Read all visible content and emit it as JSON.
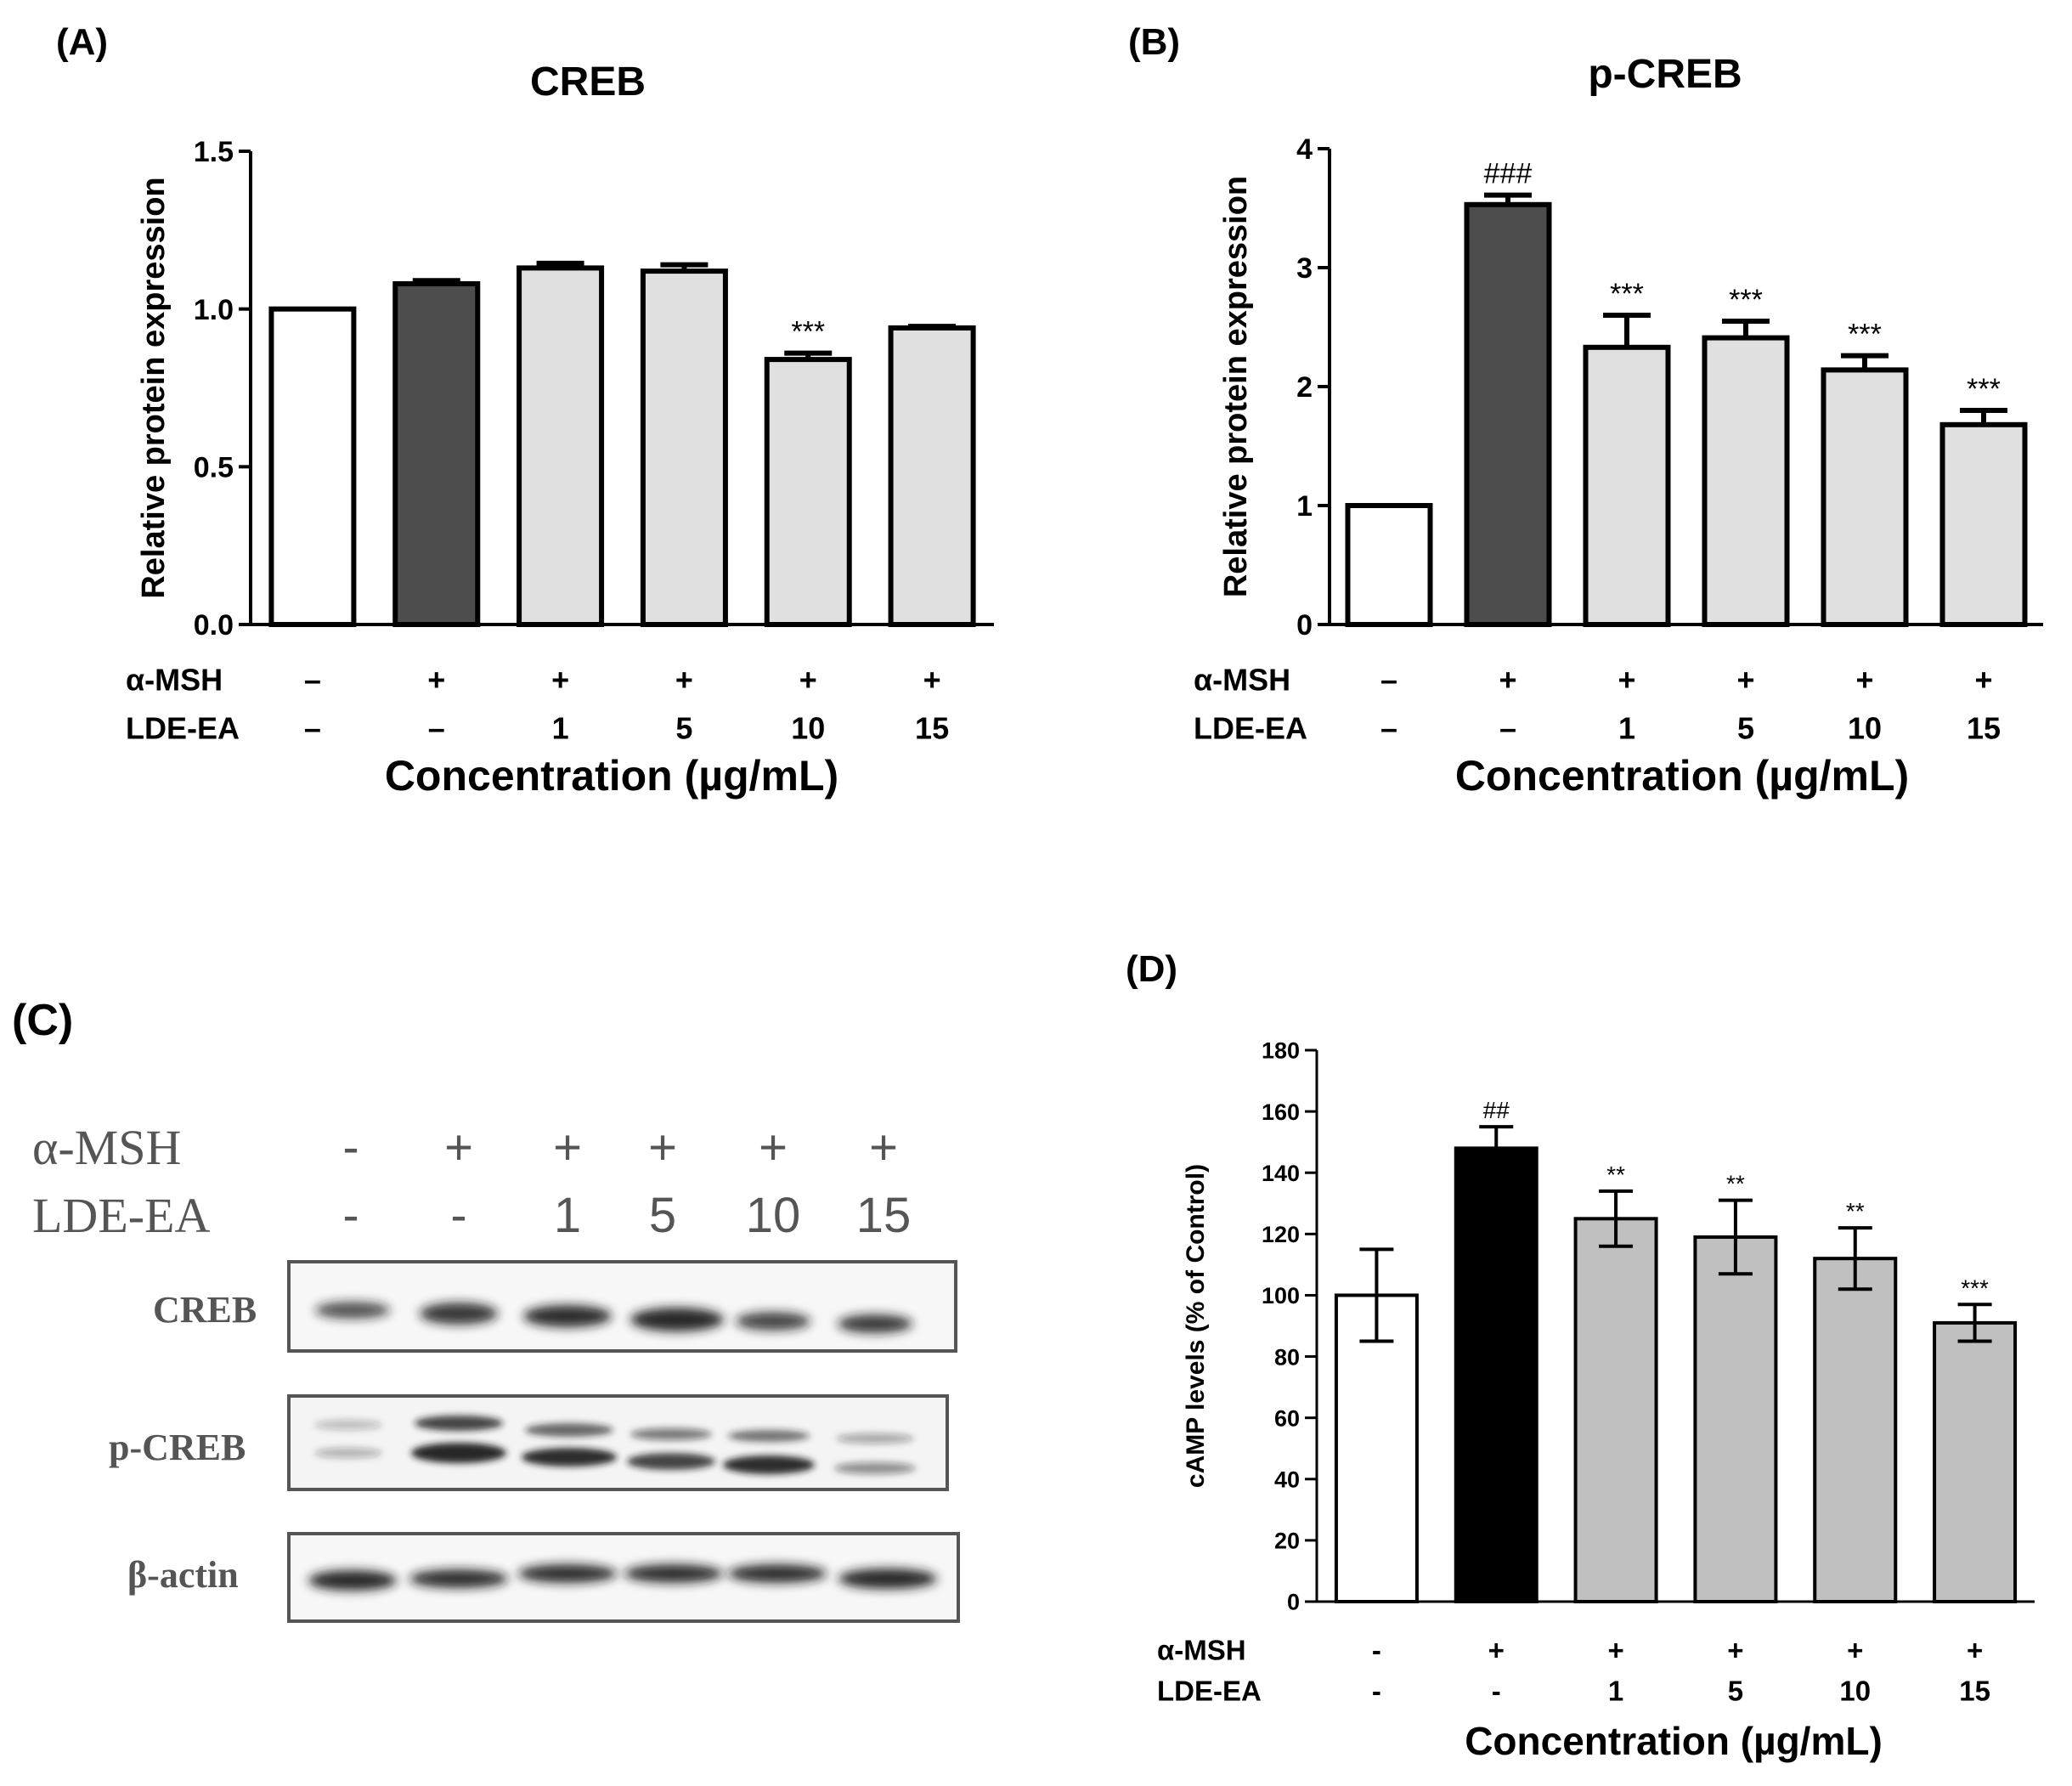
{
  "panel_labels": {
    "a": "(A)",
    "b": "(B)",
    "c": "(C)",
    "d": "(D)"
  },
  "chart_data": [
    {
      "panel": "(A)",
      "type": "bar",
      "title": "CREB",
      "ylabel": "Relative protein expression",
      "xlabel": "Concentration (µg/mL)",
      "ylim": [
        0,
        1.5
      ],
      "yticks": [
        "0.0",
        "0.5",
        "1.0",
        "1.5"
      ],
      "ytick_values": [
        0,
        0.5,
        1.0,
        1.5
      ],
      "row_labels": {
        "msh": "α-MSH",
        "lde": "LDE-EA"
      },
      "msh": [
        "–",
        "+",
        "+",
        "+",
        "+",
        "+"
      ],
      "lde": [
        "–",
        "–",
        "1",
        "5",
        "10",
        "15"
      ],
      "values": [
        1.0,
        1.08,
        1.13,
        1.12,
        0.84,
        0.94
      ],
      "errors": [
        0,
        0.01,
        0.015,
        0.02,
        0.02,
        0.005
      ],
      "annotations": [
        "",
        "",
        "",
        "",
        "***",
        ""
      ],
      "fills": [
        "#ffffff",
        "#4d4d4d",
        "#e0e0e0",
        "#e0e0e0",
        "#e0e0e0",
        "#e0e0e0"
      ]
    },
    {
      "panel": "(B)",
      "type": "bar",
      "title": "p-CREB",
      "ylabel": "Relative protein expression",
      "xlabel": "Concentration (µg/mL)",
      "ylim": [
        0,
        4
      ],
      "yticks": [
        "0",
        "1",
        "2",
        "3",
        "4"
      ],
      "ytick_values": [
        0,
        1,
        2,
        3,
        4
      ],
      "row_labels": {
        "msh": "α-MSH",
        "lde": "LDE-EA"
      },
      "msh": [
        "–",
        "+",
        "+",
        "+",
        "+",
        "+"
      ],
      "lde": [
        "–",
        "–",
        "1",
        "5",
        "10",
        "15"
      ],
      "values": [
        1.0,
        3.53,
        2.33,
        2.41,
        2.14,
        1.68
      ],
      "errors": [
        0,
        0.08,
        0.27,
        0.14,
        0.12,
        0.12
      ],
      "annotations": [
        "",
        "###",
        "***",
        "***",
        "***",
        "***"
      ],
      "fills": [
        "#ffffff",
        "#4d4d4d",
        "#e0e0e0",
        "#e0e0e0",
        "#e0e0e0",
        "#e0e0e0"
      ]
    },
    {
      "panel": "(D)",
      "type": "bar",
      "title": "",
      "ylabel": "cAMP levels (% of Control)",
      "xlabel": "Concentration (µg/mL)",
      "ylim": [
        0,
        180
      ],
      "yticks": [
        "0",
        "20",
        "40",
        "60",
        "80",
        "100",
        "120",
        "140",
        "160",
        "180"
      ],
      "ytick_values": [
        0,
        20,
        40,
        60,
        80,
        100,
        120,
        140,
        160,
        180
      ],
      "row_labels": {
        "msh": "α-MSH",
        "lde": "LDE-EA"
      },
      "msh": [
        "-",
        "+",
        "+",
        "+",
        "+",
        "+"
      ],
      "lde": [
        "-",
        "-",
        "1",
        "5",
        "10",
        "15"
      ],
      "values": [
        100,
        148,
        125,
        119,
        112,
        91
      ],
      "errors": [
        15,
        7,
        9,
        12,
        10,
        6
      ],
      "annotations": [
        "",
        "##",
        "**",
        "**",
        "**",
        "***"
      ],
      "fills": [
        "#ffffff",
        "#000000",
        "#c0c0c0",
        "#c0c0c0",
        "#c0c0c0",
        "#c0c0c0"
      ]
    }
  ],
  "blot": {
    "panel": "(C)",
    "row_labels": {
      "msh": "α-MSH",
      "lde": "LDE-EA"
    },
    "msh": [
      "-",
      "+",
      "+",
      "+",
      "+",
      "+"
    ],
    "lde": [
      "-",
      "-",
      "1",
      "5",
      "10",
      "15"
    ],
    "rows": [
      "CREB",
      "p-CREB",
      "β-actin"
    ]
  }
}
